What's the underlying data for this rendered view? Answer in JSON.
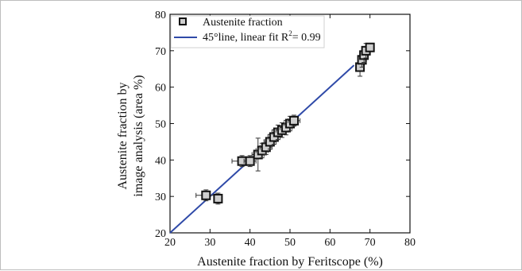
{
  "chart_data": {
    "type": "scatter",
    "xlabel": "Austenite fraction by Feritscope (%)",
    "ylabel_line1": "Austenite fraction by",
    "ylabel_line2": "image analysis (area %)",
    "xlim": [
      20,
      80
    ],
    "ylim": [
      20,
      80
    ],
    "xticks": [
      20,
      30,
      40,
      50,
      60,
      70,
      80
    ],
    "yticks": [
      20,
      30,
      40,
      50,
      60,
      70,
      80
    ],
    "grid": false,
    "legend_position": "top-left",
    "series": [
      {
        "name": "Austenite fraction",
        "marker": "square",
        "x": [
          29,
          32,
          38,
          40,
          42,
          43,
          44,
          45,
          46,
          47,
          48,
          49,
          50,
          51,
          67.5,
          68,
          68.5,
          69,
          70
        ],
        "y": [
          30.3,
          29.4,
          39.7,
          39.7,
          41.5,
          42.6,
          43.5,
          45.0,
          46.3,
          47.6,
          48.2,
          48.9,
          50.0,
          50.8,
          65.5,
          67.5,
          68.8,
          70.0,
          70.9
        ],
        "xerr": [
          2.5,
          1.0,
          2.5,
          1.5,
          1.5,
          1.5,
          1.5,
          1.5,
          1.5,
          1.5,
          1.5,
          1.5,
          1.5,
          1.5,
          1.0,
          1.0,
          1.0,
          1.0,
          1.0
        ],
        "yerr": [
          1.5,
          1.5,
          1.5,
          1.5,
          4.5,
          2.0,
          2.0,
          2.0,
          2.0,
          2.0,
          2.0,
          2.0,
          2.0,
          1.5,
          2.5,
          2.0,
          2.0,
          2.0,
          1.0
        ]
      }
    ],
    "fit_line": {
      "label_prefix": "45°line, linear fit R",
      "label_sup": "2",
      "label_suffix": "= 0.99",
      "x": [
        20,
        66
      ],
      "y": [
        20,
        66
      ]
    },
    "colors": {
      "line": "#2f4aa8",
      "marker_fill": "#cfcfcf",
      "marker_edge": "#111111"
    }
  }
}
